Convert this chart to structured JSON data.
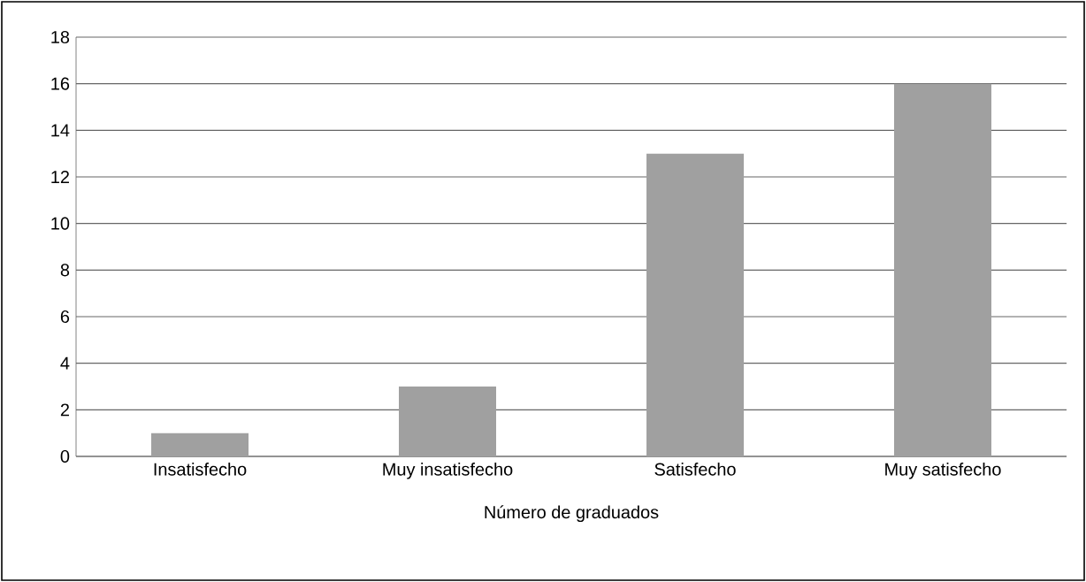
{
  "chart_data": {
    "type": "bar",
    "xlabel": "Número de graduados",
    "categories": [
      "Insatisfecho",
      "Muy insatisfecho",
      "Satisfecho",
      "Muy satisfecho"
    ],
    "values": [
      1,
      3,
      13,
      16
    ],
    "color": "#a0a0a0",
    "ylim": [
      0,
      18
    ],
    "yticks": [
      0,
      2,
      4,
      6,
      8,
      10,
      12,
      14,
      16,
      18
    ],
    "grid": "y"
  }
}
